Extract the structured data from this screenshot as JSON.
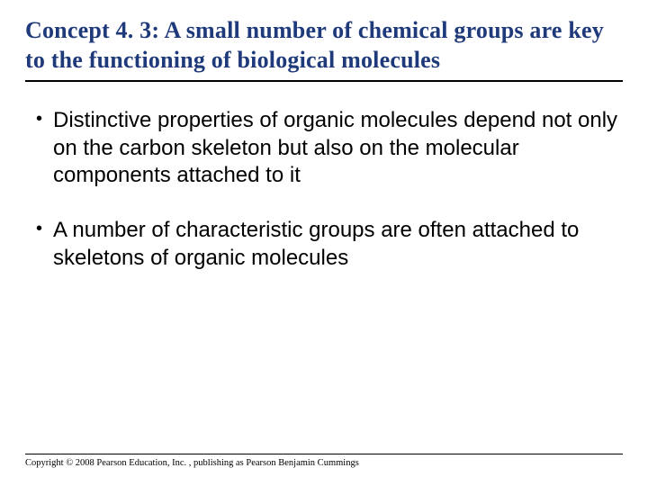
{
  "title": "Concept 4. 3: A small number of chemical groups are key to the functioning of biological molecules",
  "title_color": "#1f3a7a",
  "title_fontsize": 26,
  "title_fontfamily": "Georgia, 'Times New Roman', serif",
  "title_rule_color": "#000000",
  "title_rule_width": 2.5,
  "bullets": [
    "Distinctive properties of organic molecules depend not only on the carbon skeleton but also on the molecular components attached to it",
    "A number of characteristic groups are often attached to skeletons of organic molecules"
  ],
  "bullet_marker": "•",
  "bullet_fontsize": 24,
  "bullet_fontfamily": "Arial, Helvetica, sans-serif",
  "bullet_color": "#000000",
  "footer_rule_color": "#000000",
  "footer_rule_width": 1.5,
  "copyright": "Copyright © 2008 Pearson Education, Inc. , publishing as Pearson Benjamin Cummings",
  "copyright_fontsize": 10.5,
  "background_color": "#ffffff",
  "slide_width": 720,
  "slide_height": 540
}
